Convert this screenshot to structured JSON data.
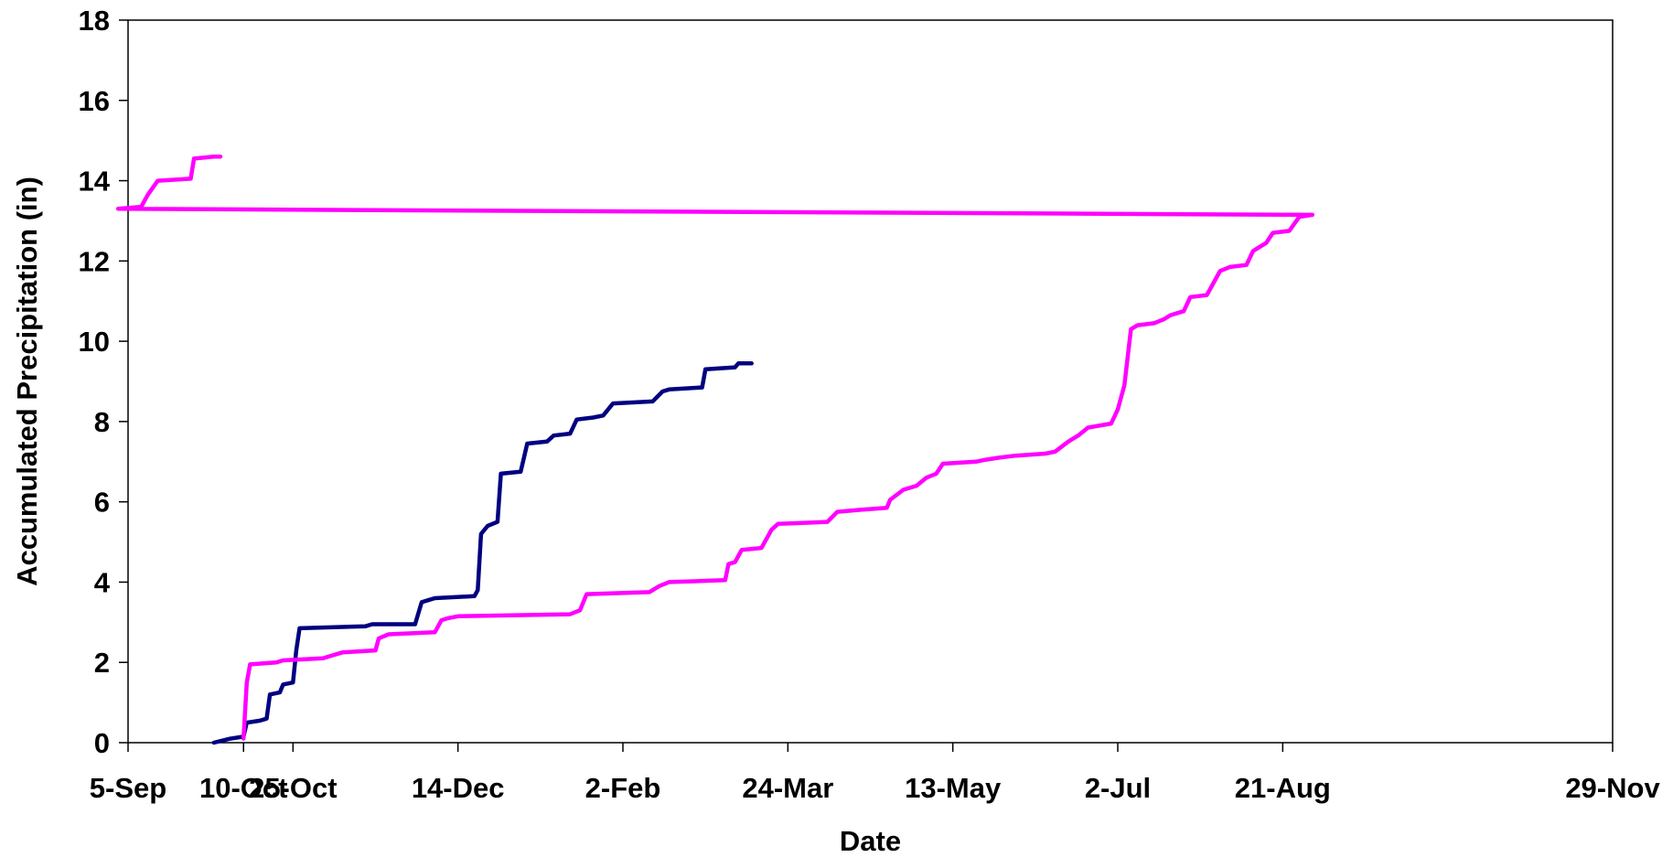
{
  "chart_data": {
    "type": "line",
    "xlabel": "Date",
    "ylabel": "Accumulated Precipitation (in)",
    "x_axis": {
      "type": "date",
      "range": [
        "5-Sep",
        "29-Nov"
      ],
      "tick_labels": [
        "5-Sep",
        "25-Oct",
        "14-Dec",
        "2-Feb",
        "24-Mar",
        "13-May",
        "2-Jul",
        "21-Aug",
        "10-Oct",
        "29-Nov"
      ]
    },
    "y_axis": {
      "range": [
        0,
        18
      ],
      "tick_labels": [
        "0",
        "2",
        "4",
        "6",
        "8",
        "10",
        "12",
        "14",
        "16",
        "18"
      ]
    },
    "grid": false,
    "legend": "none",
    "series": [
      {
        "color": "#000080",
        "points": [
          [
            "1-Oct",
            0.0
          ],
          [
            "6-Oct",
            0.1
          ],
          [
            "10-Oct",
            0.15
          ],
          [
            "11-Oct",
            0.5
          ],
          [
            "15-Oct",
            0.55
          ],
          [
            "17-Oct",
            0.6
          ],
          [
            "18-Oct",
            1.2
          ],
          [
            "21-Oct",
            1.25
          ],
          [
            "22-Oct",
            1.45
          ],
          [
            "25-Oct",
            1.5
          ],
          [
            "26-Oct",
            2.3
          ],
          [
            "27-Oct",
            2.85
          ],
          [
            "16-Nov",
            2.9
          ],
          [
            "18-Nov",
            2.95
          ],
          [
            "1-Dec",
            2.95
          ],
          [
            "3-Dec",
            3.5
          ],
          [
            "5-Dec",
            3.55
          ],
          [
            "7-Dec",
            3.6
          ],
          [
            "19-Dec",
            3.65
          ],
          [
            "20-Dec",
            3.8
          ],
          [
            "21-Dec",
            5.2
          ],
          [
            "23-Dec",
            5.4
          ],
          [
            "26-Dec",
            5.5
          ],
          [
            "27-Dec",
            6.7
          ],
          [
            "2-Jan",
            6.75
          ],
          [
            "4-Jan",
            7.45
          ],
          [
            "10-Jan",
            7.5
          ],
          [
            "12-Jan",
            7.65
          ],
          [
            "17-Jan",
            7.7
          ],
          [
            "19-Jan",
            8.05
          ],
          [
            "24-Jan",
            8.1
          ],
          [
            "27-Jan",
            8.15
          ],
          [
            "30-Jan",
            8.45
          ],
          [
            "11-Feb",
            8.5
          ],
          [
            "14-Feb",
            8.75
          ],
          [
            "16-Feb",
            8.8
          ],
          [
            "26-Feb",
            8.85
          ],
          [
            "27-Feb",
            9.3
          ],
          [
            "8-Mar",
            9.35
          ],
          [
            "9-Mar",
            9.45
          ],
          [
            "13-Mar",
            9.45
          ]
        ]
      },
      {
        "color": "#FF00FF",
        "points": [
          [
            "10-Oct",
            0.1
          ],
          [
            "11-Oct",
            1.5
          ],
          [
            "12-Oct",
            1.95
          ],
          [
            "20-Oct",
            2.0
          ],
          [
            "22-Oct",
            2.05
          ],
          [
            "3-Nov",
            2.1
          ],
          [
            "5-Nov",
            2.15
          ],
          [
            "9-Nov",
            2.25
          ],
          [
            "19-Nov",
            2.3
          ],
          [
            "20-Nov",
            2.6
          ],
          [
            "23-Nov",
            2.7
          ],
          [
            "7-Dec",
            2.75
          ],
          [
            "9-Dec",
            3.05
          ],
          [
            "11-Dec",
            3.1
          ],
          [
            "14-Dec",
            3.15
          ],
          [
            "17-Jan",
            3.2
          ],
          [
            "20-Jan",
            3.3
          ],
          [
            "22-Jan",
            3.7
          ],
          [
            "10-Feb",
            3.75
          ],
          [
            "13-Feb",
            3.9
          ],
          [
            "16-Feb",
            4.0
          ],
          [
            "5-Mar",
            4.05
          ],
          [
            "6-Mar",
            4.45
          ],
          [
            "8-Mar",
            4.5
          ],
          [
            "10-Mar",
            4.8
          ],
          [
            "16-Mar",
            4.85
          ],
          [
            "19-Mar",
            5.3
          ],
          [
            "21-Mar",
            5.45
          ],
          [
            "5-Apr",
            5.5
          ],
          [
            "8-Apr",
            5.75
          ],
          [
            "15-Apr",
            5.8
          ],
          [
            "23-Apr",
            5.85
          ],
          [
            "24-Apr",
            6.05
          ],
          [
            "28-Apr",
            6.3
          ],
          [
            "2-May",
            6.4
          ],
          [
            "5-May",
            6.6
          ],
          [
            "8-May",
            6.7
          ],
          [
            "10-May",
            6.95
          ],
          [
            "20-May",
            7.0
          ],
          [
            "23-May",
            7.05
          ],
          [
            "27-May",
            7.1
          ],
          [
            "1-Jun",
            7.15
          ],
          [
            "10-Jun",
            7.2
          ],
          [
            "13-Jun",
            7.25
          ],
          [
            "17-Jun",
            7.5
          ],
          [
            "20-Jun",
            7.65
          ],
          [
            "23-Jun",
            7.85
          ],
          [
            "30-Jun",
            7.95
          ],
          [
            "2-Jul",
            8.3
          ],
          [
            "4-Jul",
            8.9
          ],
          [
            "5-Jul",
            9.6
          ],
          [
            "6-Jul",
            10.3
          ],
          [
            "8-Jul",
            10.4
          ],
          [
            "13-Jul",
            10.45
          ],
          [
            "16-Jul",
            10.55
          ],
          [
            "18-Jul",
            10.65
          ],
          [
            "22-Jul",
            10.75
          ],
          [
            "24-Jul",
            11.1
          ],
          [
            "29-Jul",
            11.15
          ],
          [
            "31-Jul",
            11.45
          ],
          [
            "2-Aug",
            11.75
          ],
          [
            "5-Aug",
            11.85
          ],
          [
            "10-Aug",
            11.9
          ],
          [
            "12-Aug",
            12.25
          ],
          [
            "16-Aug",
            12.45
          ],
          [
            "18-Aug",
            12.7
          ],
          [
            "23-Aug",
            12.75
          ],
          [
            "26-Aug",
            13.1
          ],
          [
            "30-Aug",
            13.15
          ],
          [
            "2-Sep",
            13.3
          ],
          [
            "9-Sep",
            13.35
          ],
          [
            "11-Sep",
            13.65
          ],
          [
            "14-Sep",
            14.0
          ],
          [
            "24-Sep",
            14.05
          ],
          [
            "25-Sep",
            14.55
          ],
          [
            "1-Oct",
            14.6
          ],
          [
            "3-Oct",
            14.6
          ]
        ]
      }
    ]
  }
}
